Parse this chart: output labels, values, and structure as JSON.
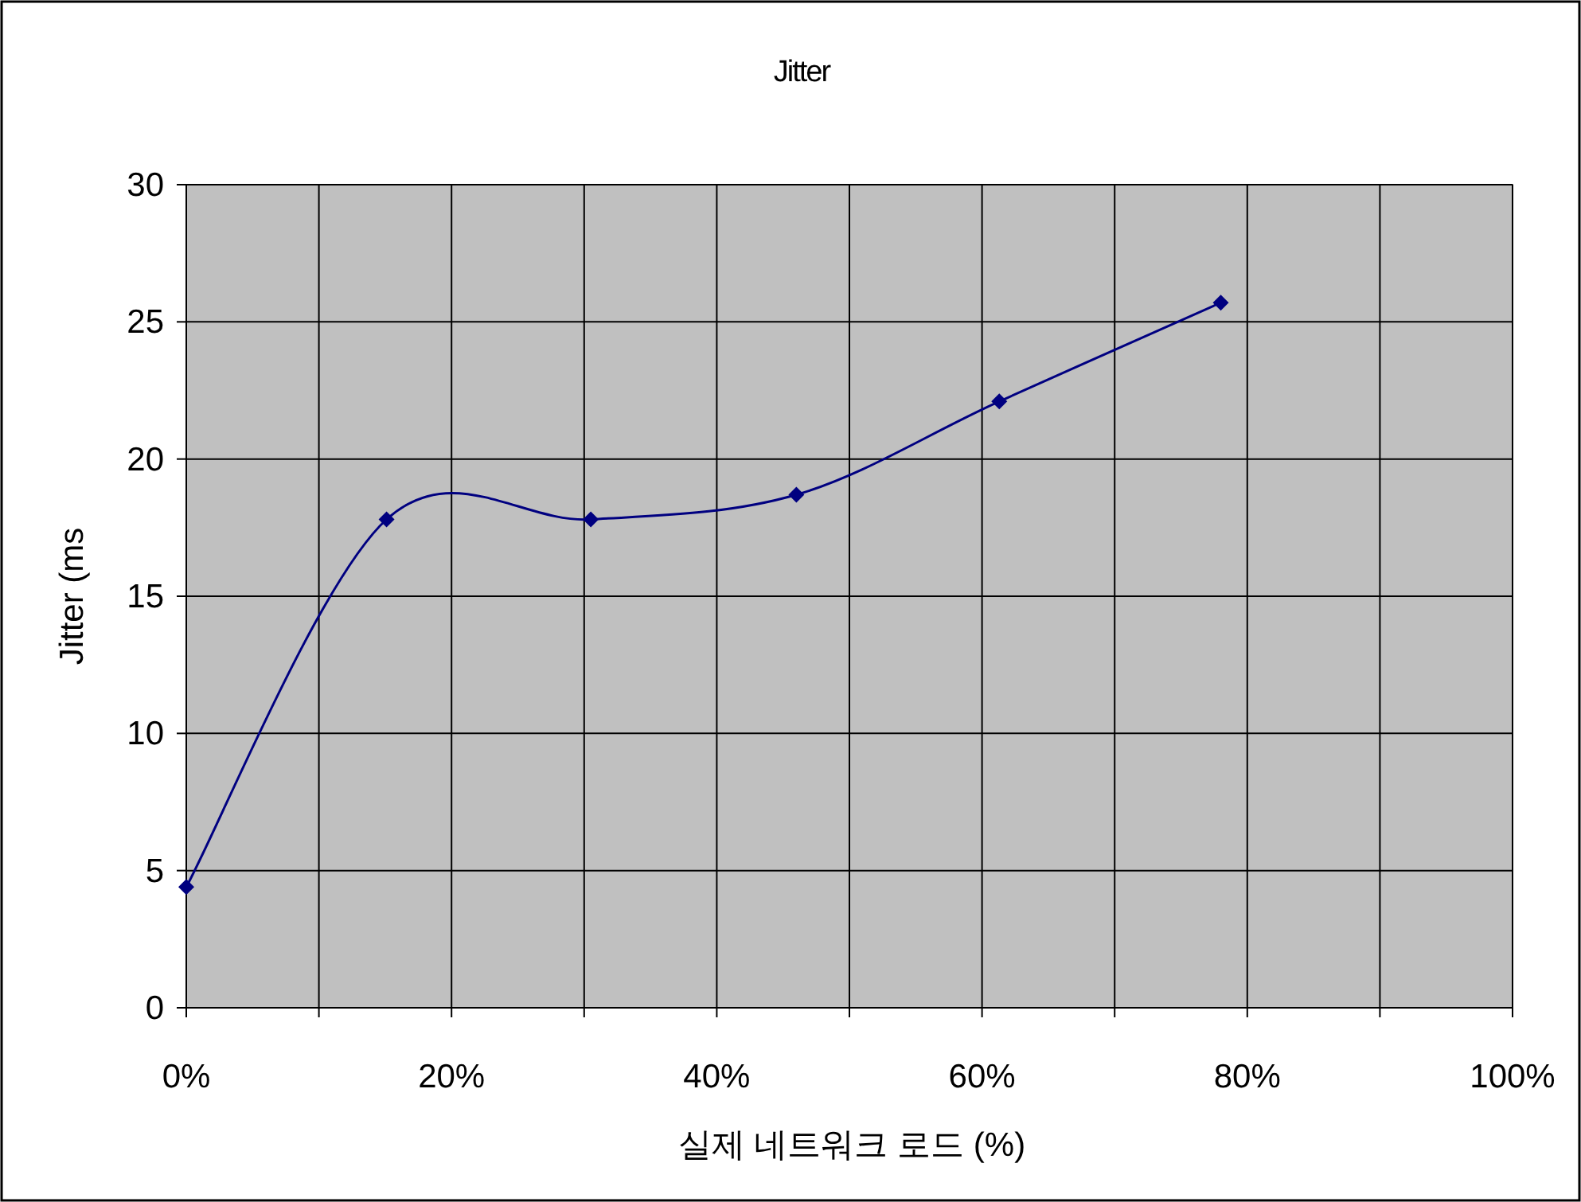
{
  "chart_data": {
    "type": "line",
    "title": "Jitter",
    "xlabel": "실제 네트워크 로드 (%)",
    "ylabel": "Jitter (ms",
    "x": [
      0,
      15.1,
      30.5,
      46,
      61.3,
      78
    ],
    "series": [
      {
        "color": "#000080",
        "values": [
          4.4,
          17.8,
          17.8,
          18.7,
          22.1,
          25.7
        ]
      }
    ],
    "xlim": [
      0,
      100
    ],
    "xticks": [
      {
        "value": 0,
        "label": "0%"
      },
      {
        "value": 10,
        "label": null
      },
      {
        "value": 20,
        "label": "20%"
      },
      {
        "value": 30,
        "label": null
      },
      {
        "value": 40,
        "label": "40%"
      },
      {
        "value": 50,
        "label": null
      },
      {
        "value": 60,
        "label": "60%"
      },
      {
        "value": 70,
        "label": null
      },
      {
        "value": 80,
        "label": "80%"
      },
      {
        "value": 90,
        "label": null
      },
      {
        "value": 100,
        "label": "100%"
      }
    ],
    "ylim": [
      0,
      30
    ],
    "yticks": [
      0,
      5,
      10,
      15,
      20,
      25,
      30
    ],
    "grid": true,
    "marker": "diamond",
    "line_style": "solid"
  }
}
